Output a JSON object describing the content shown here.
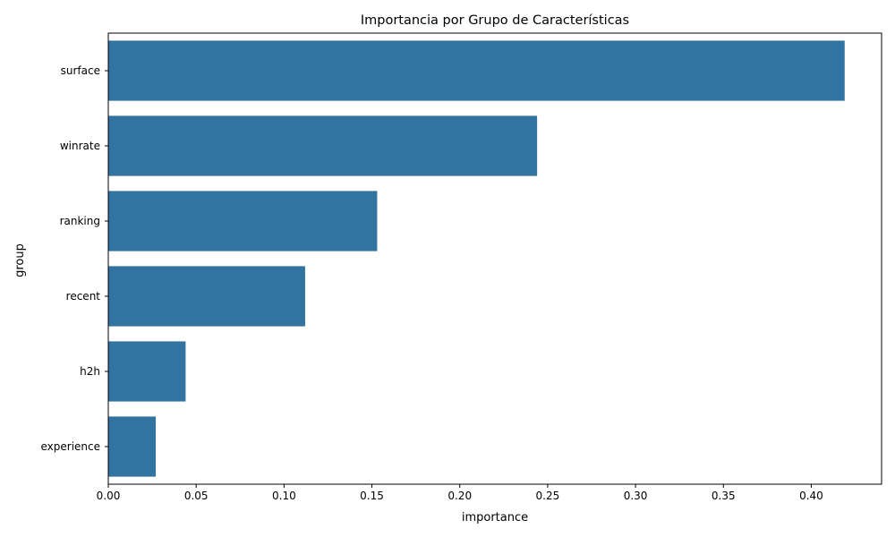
{
  "chart_data": {
    "type": "bar",
    "orientation": "horizontal",
    "title": "Importancia por Grupo de Características",
    "xlabel": "importance",
    "ylabel": "group",
    "categories": [
      "surface",
      "winrate",
      "ranking",
      "recent",
      "h2h",
      "experience"
    ],
    "values": [
      0.419,
      0.244,
      0.153,
      0.112,
      0.044,
      0.027
    ],
    "xlim": [
      0,
      0.44
    ],
    "xticks": [
      0.0,
      0.05,
      0.1,
      0.15,
      0.2,
      0.25,
      0.3,
      0.35,
      0.4
    ],
    "xtick_labels": [
      "0.00",
      "0.05",
      "0.10",
      "0.15",
      "0.20",
      "0.25",
      "0.30",
      "0.35",
      "0.40"
    ],
    "bar_color": "#3274a1",
    "grid": false,
    "legend": "none"
  }
}
